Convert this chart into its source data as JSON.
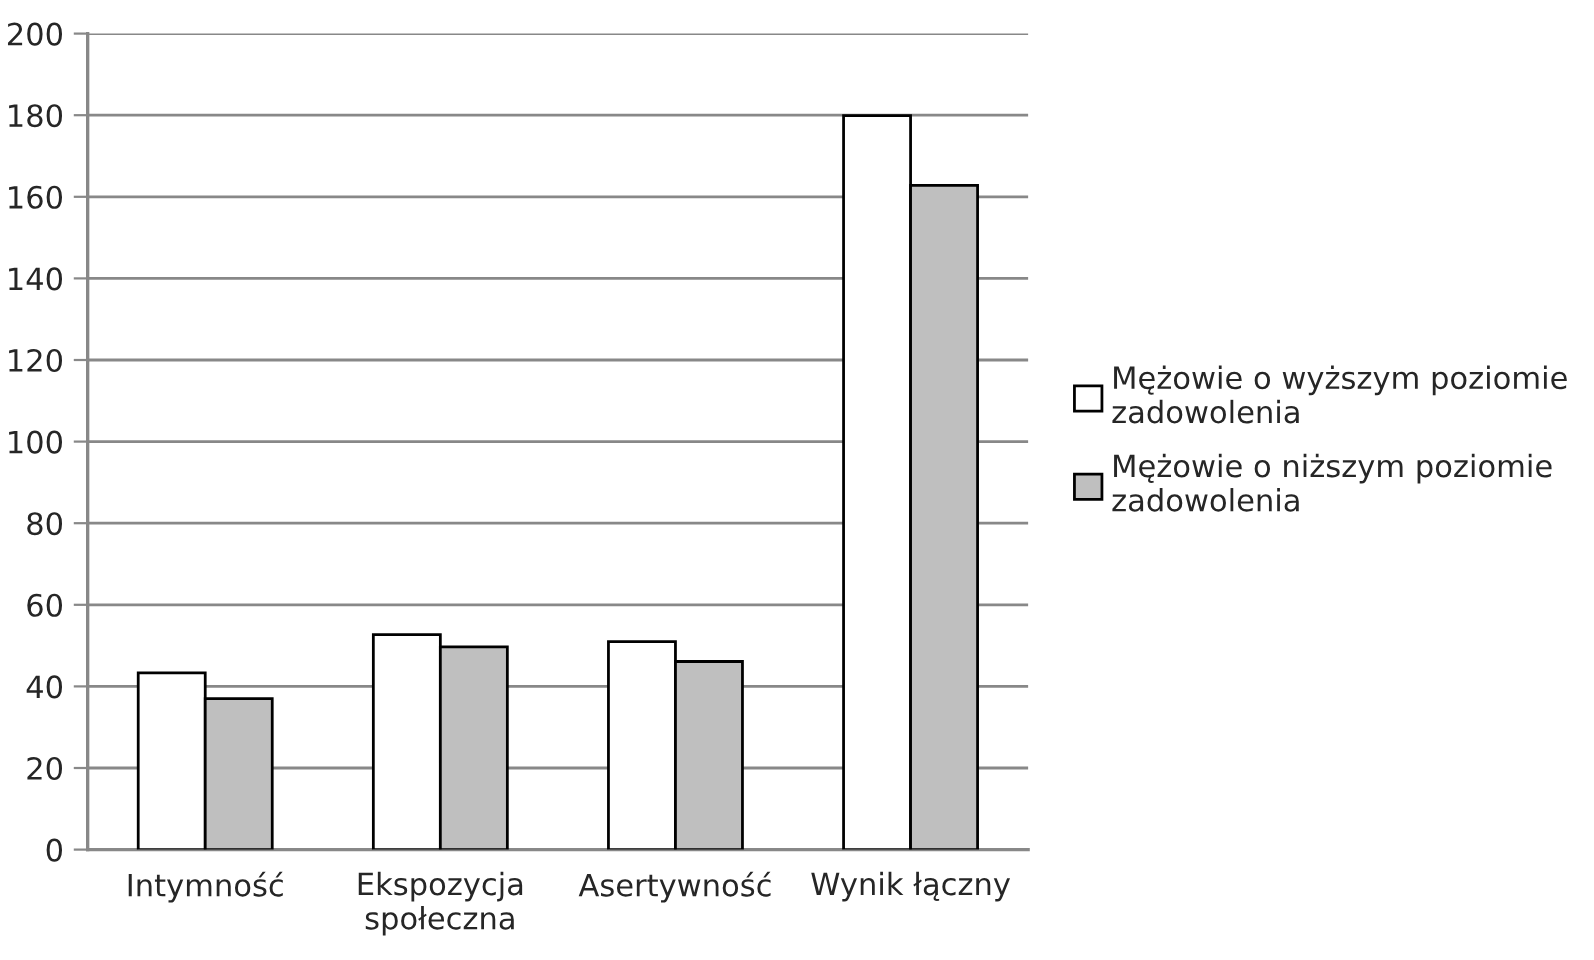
{
  "chart_data": {
    "type": "bar",
    "categories": [
      "Intymność",
      "Ekspozycja\nspołeczna",
      "Asertywność",
      "Wynik łączny"
    ],
    "series": [
      {
        "name": "Mężowie o wyższym poziomie\nzadowolenia",
        "color": "#ffffff",
        "values": [
          43.3,
          52.7,
          51.0,
          179.9
        ]
      },
      {
        "name": "Mężowie o niższym poziomie\nzadowolenia",
        "color": "#bfbfbf",
        "values": [
          37.0,
          49.7,
          46.1,
          162.8
        ]
      }
    ],
    "ylim": [
      0,
      200
    ],
    "yticks": [
      0,
      20,
      40,
      60,
      80,
      100,
      120,
      140,
      160,
      180,
      200
    ],
    "grid": "y",
    "legend": "right"
  }
}
